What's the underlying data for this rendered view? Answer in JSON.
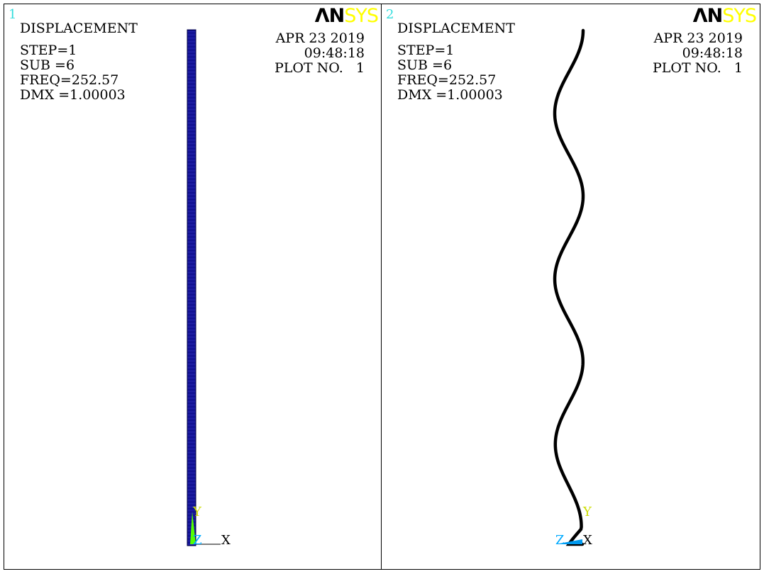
{
  "colors": {
    "window_number": "#33dddd",
    "logo_sys": "#ffff00",
    "beam_fill": "#00007a",
    "deformed_curve": "#000000",
    "axis_y_label": "#ccdd00",
    "axis_z_label": "#00aaff",
    "axis_triad_green": "#55ff00",
    "axis_triad_blue": "#0099ee"
  },
  "panels": [
    {
      "window_number": "1",
      "logo": {
        "a": "Λ",
        "n": "N",
        "sys": "SYS"
      },
      "info": {
        "title": "DISPLACEMENT",
        "step": "STEP=1",
        "sub": "SUB =6",
        "freq": "FREQ=252.57",
        "dmx": "DMX =1.00003"
      },
      "date": "APR 23 2019",
      "time": "09:48:18",
      "plot_no": "PLOT NO.   1",
      "axes": {
        "y": "Y",
        "z": "Z",
        "x": "X"
      }
    },
    {
      "window_number": "2",
      "logo": {
        "a": "Λ",
        "n": "N",
        "sys": "SYS"
      },
      "info": {
        "title": "DISPLACEMENT",
        "step": "STEP=1",
        "sub": "SUB =6",
        "freq": "FREQ=252.57",
        "dmx": "DMX =1.00003"
      },
      "date": "APR 23 2019",
      "time": "09:48:18",
      "plot_no": "PLOT NO.   1",
      "axes": {
        "y": "Y",
        "z": "Z",
        "x": "X"
      }
    }
  ]
}
